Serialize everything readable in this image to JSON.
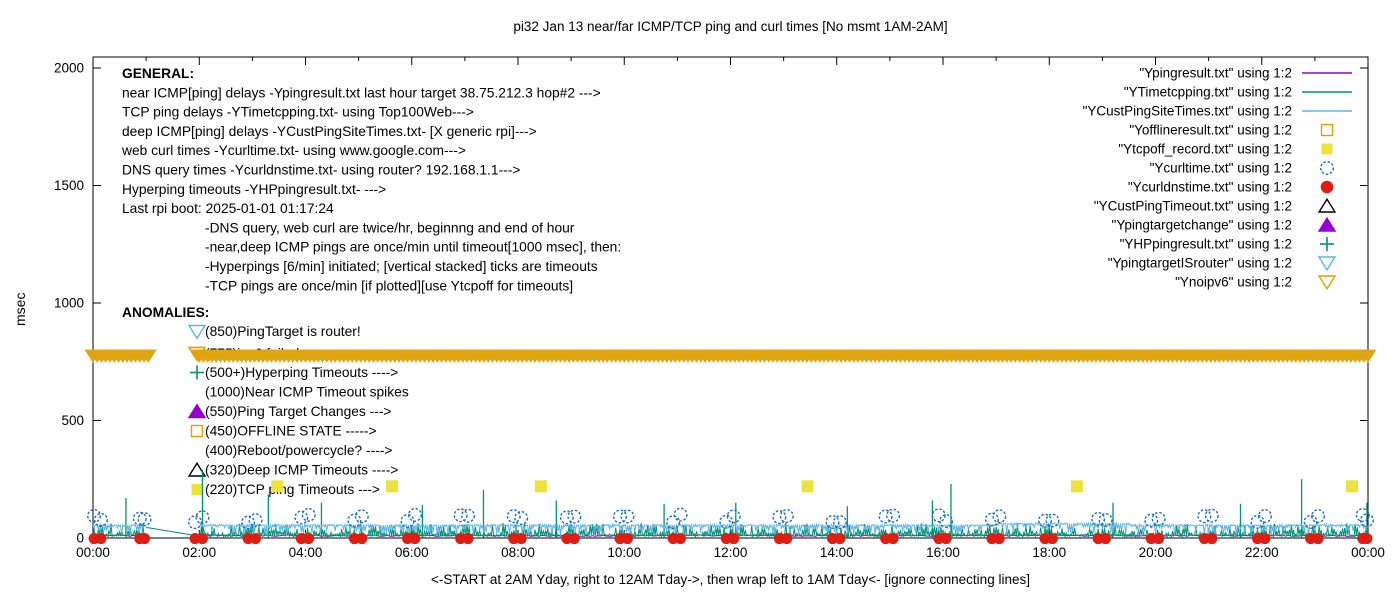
{
  "chart_data": {
    "type": "line",
    "title": "pi32 Jan 13  near/far ICMP/TCP ping and curl times [No msmt 1AM-2AM]",
    "xlabel": "<-START at 2AM Yday, right to 12AM Tday->, then wrap left to 1AM Tday<- [ignore connecting lines]",
    "ylabel": "msec",
    "ylim": [
      0,
      2000
    ],
    "yticks": [
      0,
      500,
      1000,
      1500,
      2000
    ],
    "x_hours": 24,
    "xtick_labels": [
      "00:00",
      "02:00",
      "04:00",
      "06:00",
      "08:00",
      "10:00",
      "12:00",
      "14:00",
      "16:00",
      "18:00",
      "20:00",
      "22:00",
      "00:00"
    ],
    "no_measurement_window_hours": [
      1,
      2
    ],
    "colors": {
      "near_icmp": "#9400D3",
      "tcp_ping": "#009272",
      "deep_icmp": "#5CB5E8",
      "offline": "#E69F00",
      "tcp_timeout": "#EDE23C",
      "curl": "#1F6FB2",
      "dns": "#DF1D12",
      "deep_timeout": "#000000",
      "target_change": "#9400D3",
      "hyperping": "#009272",
      "target_router": "#5CB5E8",
      "noipv6": "#E69F00",
      "band": "#DFA412"
    },
    "legend": [
      {
        "label": "\"Ypingresult.txt\" using 1:2",
        "glyph": "line",
        "color_key": "near_icmp"
      },
      {
        "label": "\"YTimetcpping.txt\" using 1:2",
        "glyph": "line",
        "color_key": "tcp_ping"
      },
      {
        "label": "\"YCustPingSiteTimes.txt\" using 1:2",
        "glyph": "line",
        "color_key": "deep_icmp"
      },
      {
        "label": "\"Yofflineresult.txt\" using 1:2",
        "glyph": "square-open",
        "color_key": "offline"
      },
      {
        "label": "\"Ytcpoff_record.txt\" using 1:2",
        "glyph": "square-filled",
        "color_key": "tcp_timeout"
      },
      {
        "label": "\"Ycurltime.txt\" using 1:2",
        "glyph": "circle-open",
        "color_key": "curl"
      },
      {
        "label": "\"Ycurldnstime.txt\" using 1:2",
        "glyph": "circle-filled",
        "color_key": "dns"
      },
      {
        "label": "\"YCustPingTimeout.txt\" using 1:2",
        "glyph": "tri-up-open",
        "color_key": "deep_timeout"
      },
      {
        "label": "\"Ypingtargetchange\" using 1:2",
        "glyph": "tri-up-filled",
        "color_key": "target_change"
      },
      {
        "label": "\"YHPpingresult.txt\" using 1:2",
        "glyph": "plus",
        "color_key": "hyperping"
      },
      {
        "label": "\"YpingtargetISrouter\" using 1:2",
        "glyph": "tri-down-open",
        "color_key": "target_router"
      },
      {
        "label": "\"Ynoipv6\" using 1:2",
        "glyph": "tri-down-open",
        "color_key": "noipv6"
      }
    ],
    "series": [
      {
        "name": "near ICMP ping delay",
        "color_key": "near_icmp",
        "style": "noisy-line",
        "base_msec": 10,
        "range_msec": [
          5,
          14
        ]
      },
      {
        "name": "TCP ping delay",
        "color_key": "tcp_ping",
        "style": "noisy-line",
        "base_msec": 30,
        "range_msec": [
          4,
          65
        ]
      },
      {
        "name": "deep ICMP ping delay",
        "color_key": "deep_icmp",
        "style": "noisy-line",
        "base_msec": 50,
        "range_msec": [
          12,
          58
        ]
      }
    ],
    "events": {
      "tcp_timeout_squares": {
        "y_msec": 220,
        "hours": [
          3.47,
          5.63,
          8.43,
          13.45,
          18.52,
          23.7
        ]
      },
      "noipv6_band": {
        "y_msec": 775,
        "segments_hours": [
          [
            0,
            1.05
          ],
          [
            2,
            24
          ]
        ]
      },
      "dns_query_dots": {
        "y_msec": 4,
        "schedule": "twice per hour, start and end of hour"
      },
      "web_curl_circles": {
        "y_msec_range": [
          65,
          100
        ],
        "schedule": "twice per hour"
      },
      "tcp_spikes": [
        {
          "h": 0.62,
          "v": 170
        },
        {
          "h": 2.06,
          "v": 290
        },
        {
          "h": 3.3,
          "v": 185
        },
        {
          "h": 4.3,
          "v": 150
        },
        {
          "h": 6.2,
          "v": 140
        },
        {
          "h": 7.35,
          "v": 205
        },
        {
          "h": 8.72,
          "v": 160
        },
        {
          "h": 10.75,
          "v": 145
        },
        {
          "h": 12.1,
          "v": 150
        },
        {
          "h": 14.2,
          "v": 135
        },
        {
          "h": 15.8,
          "v": 160
        },
        {
          "h": 16.15,
          "v": 230
        },
        {
          "h": 19.2,
          "v": 150
        },
        {
          "h": 21.6,
          "v": 145
        },
        {
          "h": 22.75,
          "v": 250
        },
        {
          "h": 23.98,
          "v": 150
        }
      ],
      "connector_line": {
        "from": {
          "h": 1,
          "v": 45
        },
        "to": {
          "h": 2,
          "v": 8
        }
      }
    }
  },
  "annotations": {
    "general": {
      "heading": "GENERAL:",
      "lines": [
        "near ICMP[ping] delays -Ypingresult.txt last hour target 38.75.212.3 hop#2 --->",
        "TCP ping delays -YTimetcpping.txt- using Top100Web--->",
        "deep ICMP[ping] delays -YCustPingSiteTimes.txt- [X generic rpi]--->",
        "web curl times -Ycurltime.txt- using www.google.com--->",
        "DNS query times -Ycurldnstime.txt- using router? 192.168.1.1--->",
        "Hyperping timeouts -YHPpingresult.txt- --->",
        "Last rpi boot: 2025-01-01 01:17:24",
        "-DNS query, web curl are twice/hr, beginnng and end of hour",
        "-near,deep ICMP pings are once/min until timeout[1000 msec], then:",
        "-Hyperpings [6/min] initiated; [vertical stacked] ticks are timeouts",
        "-TCP pings are once/min [if plotted][use Ytcpoff for timeouts]"
      ]
    },
    "anomalies": {
      "heading": "ANOMALIES:",
      "items": [
        {
          "marker": "tri-down-open",
          "color_key": "target_router",
          "label": "(850)PingTarget is router!"
        },
        {
          "marker": "tri-down-open",
          "color_key": "noipv6",
          "label": "(775)ipv6 failed --->",
          "note": "hidden behind noipv6 band"
        },
        {
          "marker": "plus",
          "color_key": "hyperping",
          "label": "(500+)Hyperping Timeouts ---->"
        },
        {
          "marker": "none",
          "color_key": "",
          "label": "(1000)Near ICMP Timeout spikes"
        },
        {
          "marker": "tri-up-filled",
          "color_key": "target_change",
          "label": "(550)Ping Target Changes --->"
        },
        {
          "marker": "square-open",
          "color_key": "offline",
          "label": "(450)OFFLINE STATE ----->"
        },
        {
          "marker": "none",
          "color_key": "",
          "label": "(400)Reboot/powercycle? ---->"
        },
        {
          "marker": "tri-up-open",
          "color_key": "deep_timeout",
          "label": "(320)Deep ICMP Timeouts ---->"
        },
        {
          "marker": "square-filled",
          "color_key": "tcp_timeout",
          "label": "(220)TCP ping Timeouts --->"
        }
      ]
    }
  }
}
